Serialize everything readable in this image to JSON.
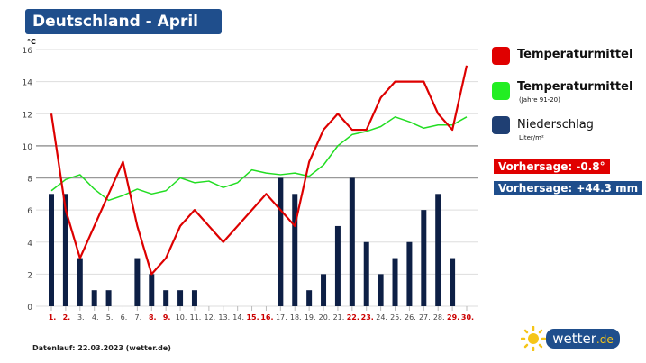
{
  "title": "Deutschland - April",
  "footer": "Datenlauf: 22.03.2023 (wetter.de)",
  "logo": {
    "text": "wetter",
    "tld": ".de"
  },
  "legend": [
    {
      "label": "Temperaturmittel",
      "sub": "",
      "color": "#e00000"
    },
    {
      "label": "Temperaturmittel",
      "sub": "(Jahre 91-20)",
      "color": "#22dd22"
    },
    {
      "label": "Niederschlag",
      "sub": "Liter/m²",
      "color": "#1f3f73"
    }
  ],
  "badges": [
    {
      "text": "Vorhersage: -0.8°",
      "color": "#e00000"
    },
    {
      "text": "Vorhersage: +44.3 mm",
      "color": "#1f4e8c"
    }
  ],
  "chart_data": {
    "type": "bar+line",
    "ylabel": "°C",
    "ylim": [
      0,
      16
    ],
    "yticks": [
      0,
      2,
      4,
      6,
      8,
      10,
      12,
      14,
      16
    ],
    "categories": [
      "1.",
      "2.",
      "3.",
      "4.",
      "5.",
      "6.",
      "7.",
      "8.",
      "9.",
      "10.",
      "11.",
      "12.",
      "13.",
      "14.",
      "15.",
      "16.",
      "17.",
      "18.",
      "19.",
      "20.",
      "21.",
      "22.",
      "23.",
      "24.",
      "25.",
      "26.",
      "27.",
      "28.",
      "29.",
      "30."
    ],
    "highlight_days": [
      1,
      2,
      8,
      9,
      15,
      16,
      22,
      23,
      29,
      30
    ],
    "series": [
      {
        "name": "Niederschlag",
        "type": "bar",
        "color": "#0d1f45",
        "values": [
          7,
          7,
          3,
          1,
          1,
          0,
          3,
          2,
          1,
          1,
          1,
          0,
          0,
          0,
          0,
          0,
          8,
          7,
          1,
          2,
          5,
          8,
          4,
          2,
          3,
          4,
          6,
          7,
          3,
          0
        ]
      },
      {
        "name": "Temperaturmittel (Jahre 91-20)",
        "type": "line",
        "color": "#22dd22",
        "values": [
          7.2,
          7.9,
          8.2,
          7.3,
          6.6,
          6.9,
          7.3,
          7.0,
          7.2,
          8.0,
          7.7,
          7.8,
          7.4,
          7.7,
          8.5,
          8.3,
          8.2,
          8.3,
          8.1,
          8.8,
          10.0,
          10.7,
          10.9,
          11.2,
          11.8,
          11.5,
          11.1,
          11.3,
          11.3,
          11.8
        ]
      },
      {
        "name": "Temperaturmittel",
        "type": "line",
        "color": "#dd0000",
        "values": [
          12,
          6,
          3,
          5,
          7,
          9,
          5,
          2,
          3,
          5,
          6,
          5,
          4,
          5,
          6,
          7,
          6,
          5,
          9,
          11,
          12,
          11,
          11,
          13,
          14,
          14,
          14,
          12,
          11,
          15
        ]
      }
    ]
  }
}
